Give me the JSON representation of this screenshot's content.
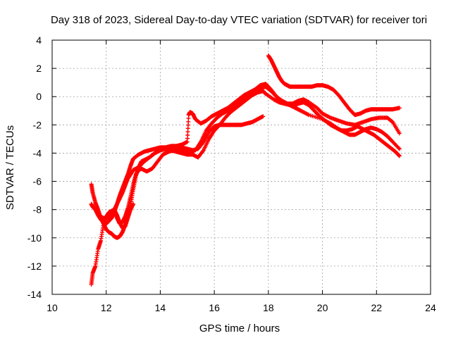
{
  "chart_data": {
    "type": "scatter",
    "title": "Day 318 of 2023, Sidereal Day-to-day VTEC variation (SDTVAR) for receiver tori",
    "xlabel": "GPS time / hours",
    "ylabel": "SDTVAR / TECUs",
    "xlim": [
      10,
      24
    ],
    "ylim": [
      -14,
      4
    ],
    "xticks": [
      10,
      12,
      14,
      16,
      18,
      20,
      22,
      24
    ],
    "yticks": [
      -14,
      -12,
      -10,
      -8,
      -6,
      -4,
      -2,
      0,
      2,
      4
    ],
    "grid": true,
    "marker": "+",
    "color": "#ff0000",
    "series": [
      {
        "name": "track-1",
        "x": [
          11.45,
          11.5,
          11.6,
          11.7,
          11.8,
          11.9,
          12.0,
          12.1,
          12.2,
          12.3,
          12.4,
          12.5,
          12.6,
          12.7,
          12.8,
          12.9,
          13.0
        ],
        "y": [
          -13.3,
          -12.5,
          -12.0,
          -10.8,
          -10.2,
          -9.0,
          -8.5,
          -8.2,
          -8.1,
          -8.0,
          -8.4,
          -8.9,
          -9.3,
          -9.2,
          -8.6,
          -8.0,
          -7.6
        ]
      },
      {
        "name": "track-2",
        "x": [
          11.45,
          11.5,
          11.6,
          11.7,
          11.8,
          11.9,
          12.0,
          12.1,
          12.2,
          12.3,
          12.4,
          12.5,
          12.6,
          12.7,
          12.8,
          12.9,
          13.0,
          13.1,
          13.2,
          13.3,
          13.4,
          13.6,
          13.8,
          14.0,
          14.2,
          14.4,
          14.6,
          14.8,
          15.0,
          15.2,
          15.4,
          15.6,
          15.8,
          16.0,
          16.2,
          16.4,
          16.6,
          16.8,
          17.0,
          17.2,
          17.4,
          17.6,
          17.8,
          17.9,
          18.2,
          18.4,
          18.6,
          18.8,
          19.0,
          19.2,
          19.5,
          20.0,
          20.3,
          20.6,
          20.8,
          21.0,
          21.2,
          21.4,
          21.6,
          21.8,
          22.0,
          22.2,
          22.4,
          22.6,
          22.85
        ],
        "y": [
          -6.2,
          -6.8,
          -7.5,
          -8.0,
          -8.6,
          -9.0,
          -9.4,
          -9.6,
          -9.7,
          -9.9,
          -10.0,
          -9.9,
          -9.6,
          -9.1,
          -8.4,
          -7.7,
          -6.6,
          -5.6,
          -5.0,
          -4.6,
          -4.5,
          -4.3,
          -4.0,
          -3.8,
          -3.7,
          -3.8,
          -3.9,
          -4.0,
          -4.1,
          -4.1,
          -4.3,
          -3.8,
          -3.0,
          -2.4,
          -2.0,
          -1.5,
          -1.1,
          -0.8,
          -0.5,
          -0.2,
          0.1,
          0.3,
          0.4,
          0.2,
          -0.2,
          -0.4,
          -0.5,
          -0.6,
          -0.8,
          -1.0,
          -1.3,
          -1.6,
          -1.9,
          -2.3,
          -2.5,
          -2.7,
          -2.7,
          -2.5,
          -2.3,
          -2.2,
          -2.3,
          -2.5,
          -2.8,
          -3.2,
          -3.7
        ]
      },
      {
        "name": "track-3",
        "x": [
          11.45,
          11.5,
          11.6,
          11.7,
          11.8,
          11.9,
          12.0,
          12.1,
          12.2,
          12.3,
          12.4,
          12.5,
          12.6,
          12.7,
          12.8,
          12.9,
          13.0,
          13.2,
          13.4,
          13.6,
          13.8,
          14.0,
          14.2,
          14.4,
          14.6,
          14.8,
          15.0,
          15.2,
          15.4,
          15.6,
          15.8,
          16.0,
          16.2,
          16.4,
          16.6,
          16.8,
          17.0,
          17.2,
          17.4,
          17.6,
          17.8
        ],
        "y": [
          -7.6,
          -7.8,
          -8.0,
          -8.4,
          -8.7,
          -8.9,
          -9.0,
          -8.8,
          -8.6,
          -8.2,
          -7.6,
          -7.0,
          -6.5,
          -6.0,
          -5.5,
          -4.9,
          -4.4,
          -4.1,
          -3.9,
          -3.8,
          -3.7,
          -3.6,
          -3.6,
          -3.5,
          -3.5,
          -3.6,
          -3.7,
          -3.8,
          -3.7,
          -3.2,
          -2.5,
          -2.1,
          -2.0,
          -2.0,
          -2.0,
          -2.0,
          -2.0,
          -1.9,
          -1.8,
          -1.6,
          -1.4
        ]
      },
      {
        "name": "track-4",
        "x": [
          11.6,
          11.7,
          11.8,
          11.9,
          12.0,
          12.1,
          12.2,
          12.3,
          12.4,
          12.5,
          12.6,
          12.7,
          12.8,
          12.9,
          13.0,
          13.2,
          13.4,
          13.6,
          13.8,
          14.0,
          14.2,
          14.4,
          14.6,
          14.8,
          15.0,
          15.05,
          15.1,
          15.2,
          15.3,
          15.5,
          15.7,
          15.9,
          16.1,
          16.3,
          16.5,
          16.7,
          16.9,
          17.1,
          17.3,
          17.5,
          17.7,
          17.9,
          18.1,
          18.3,
          18.5,
          18.7,
          18.9,
          19.1,
          19.3,
          19.5,
          19.8,
          20.0,
          20.3,
          20.6,
          20.9,
          21.2,
          21.5,
          21.8,
          22.1,
          22.4,
          22.6,
          22.85
        ],
        "y": [
          -8.0,
          -8.3,
          -8.5,
          -8.6,
          -8.6,
          -8.5,
          -8.3,
          -8.0,
          -7.6,
          -7.2,
          -6.8,
          -6.3,
          -5.8,
          -5.5,
          -5.2,
          -5.0,
          -4.6,
          -4.3,
          -4.0,
          -3.8,
          -3.7,
          -3.6,
          -3.5,
          -3.4,
          -3.2,
          -1.3,
          -1.1,
          -1.2,
          -1.6,
          -1.9,
          -1.7,
          -1.4,
          -1.2,
          -1.0,
          -0.8,
          -0.5,
          -0.2,
          0.1,
          0.3,
          0.5,
          0.6,
          0.7,
          0.4,
          0.0,
          -0.3,
          -0.5,
          -0.5,
          -0.3,
          -0.2,
          -0.4,
          -0.8,
          -1.2,
          -1.5,
          -1.7,
          -1.9,
          -2.0,
          -1.8,
          -1.6,
          -1.5,
          -1.5,
          -1.8,
          -2.6
        ]
      },
      {
        "name": "track-5",
        "x": [
          12.3,
          12.4,
          12.5,
          12.6,
          12.7,
          12.8,
          12.9,
          13.0,
          13.1,
          13.2,
          13.3,
          13.5,
          13.7,
          13.9,
          14.1,
          14.3,
          14.5,
          14.7,
          14.9,
          15.1,
          15.3,
          15.5,
          15.7,
          15.9,
          16.1,
          16.3,
          16.5,
          16.7,
          16.9,
          17.1,
          17.3,
          17.5,
          17.7,
          17.9,
          18.1,
          18.3,
          18.5,
          18.7,
          18.9,
          19.1,
          19.3,
          19.5,
          19.7,
          19.9,
          20.1,
          20.3,
          20.5,
          20.7,
          20.9,
          21.1,
          21.3,
          21.5,
          21.7,
          21.9,
          22.1,
          22.3,
          22.5,
          22.7,
          22.85
        ],
        "y": [
          -8.0,
          -8.6,
          -9.0,
          -8.9,
          -8.5,
          -7.9,
          -7.1,
          -6.2,
          -5.5,
          -5.2,
          -5.1,
          -5.3,
          -5.1,
          -4.6,
          -4.1,
          -3.9,
          -3.8,
          -3.8,
          -3.9,
          -3.9,
          -3.8,
          -3.2,
          -2.4,
          -1.9,
          -1.5,
          -1.2,
          -1.0,
          -0.7,
          -0.4,
          -0.1,
          0.2,
          0.5,
          0.8,
          0.9,
          0.5,
          0.0,
          -0.3,
          -0.5,
          -0.7,
          -0.5,
          -0.4,
          -0.6,
          -1.0,
          -1.4,
          -1.7,
          -2.0,
          -2.2,
          -2.4,
          -2.4,
          -2.3,
          -2.1,
          -2.3,
          -2.5,
          -2.7,
          -3.0,
          -3.3,
          -3.6,
          -3.9,
          -4.2
        ]
      },
      {
        "name": "track-6",
        "x": [
          18.0,
          18.1,
          18.2,
          18.3,
          18.4,
          18.5,
          18.6,
          18.7,
          18.8,
          19.0,
          19.2,
          19.4,
          19.6,
          19.8,
          20.0,
          20.2,
          20.4,
          20.6,
          20.8,
          21.0,
          21.2,
          21.4,
          21.6,
          21.8,
          22.0,
          22.2,
          22.4,
          22.6,
          22.85
        ],
        "y": [
          2.9,
          2.6,
          2.2,
          1.8,
          1.4,
          1.1,
          0.9,
          0.8,
          0.7,
          0.7,
          0.7,
          0.7,
          0.7,
          0.8,
          0.8,
          0.7,
          0.5,
          0.1,
          -0.4,
          -0.9,
          -1.3,
          -1.2,
          -1.0,
          -0.9,
          -0.9,
          -0.9,
          -0.9,
          -0.9,
          -0.8
        ]
      }
    ]
  }
}
